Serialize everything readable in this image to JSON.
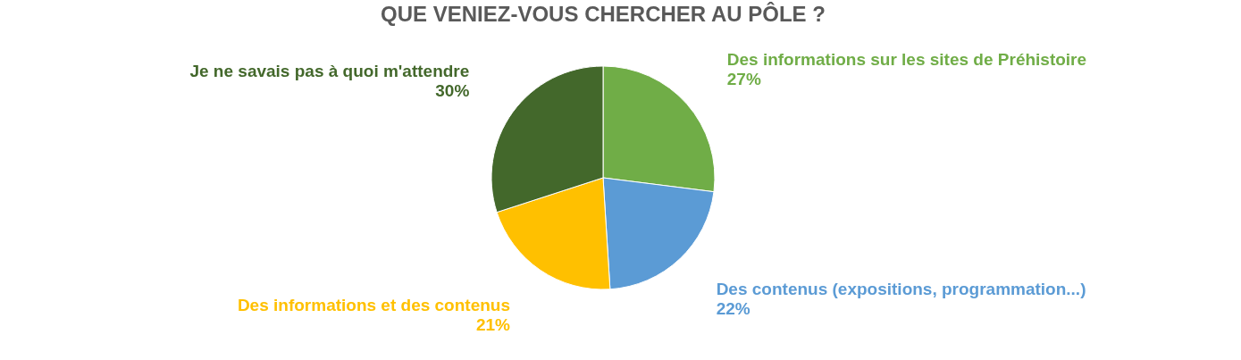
{
  "chart_data": {
    "type": "pie",
    "title": "QUE VENIEZ-VOUS CHERCHER AU PÔLE ?",
    "categories": [
      "Des informations sur les sites de Préhistoire",
      "Des contenus (expositions, programmation...)",
      "Des informations et des contenus",
      "Je ne savais pas à quoi m'attendre"
    ],
    "values": [
      27,
      22,
      21,
      30
    ],
    "value_labels": [
      "27%",
      "22%",
      "21%",
      "30%"
    ],
    "colors": [
      "#70ad47",
      "#5b9bd5",
      "#ffc000",
      "#43682b"
    ],
    "legend": false
  }
}
